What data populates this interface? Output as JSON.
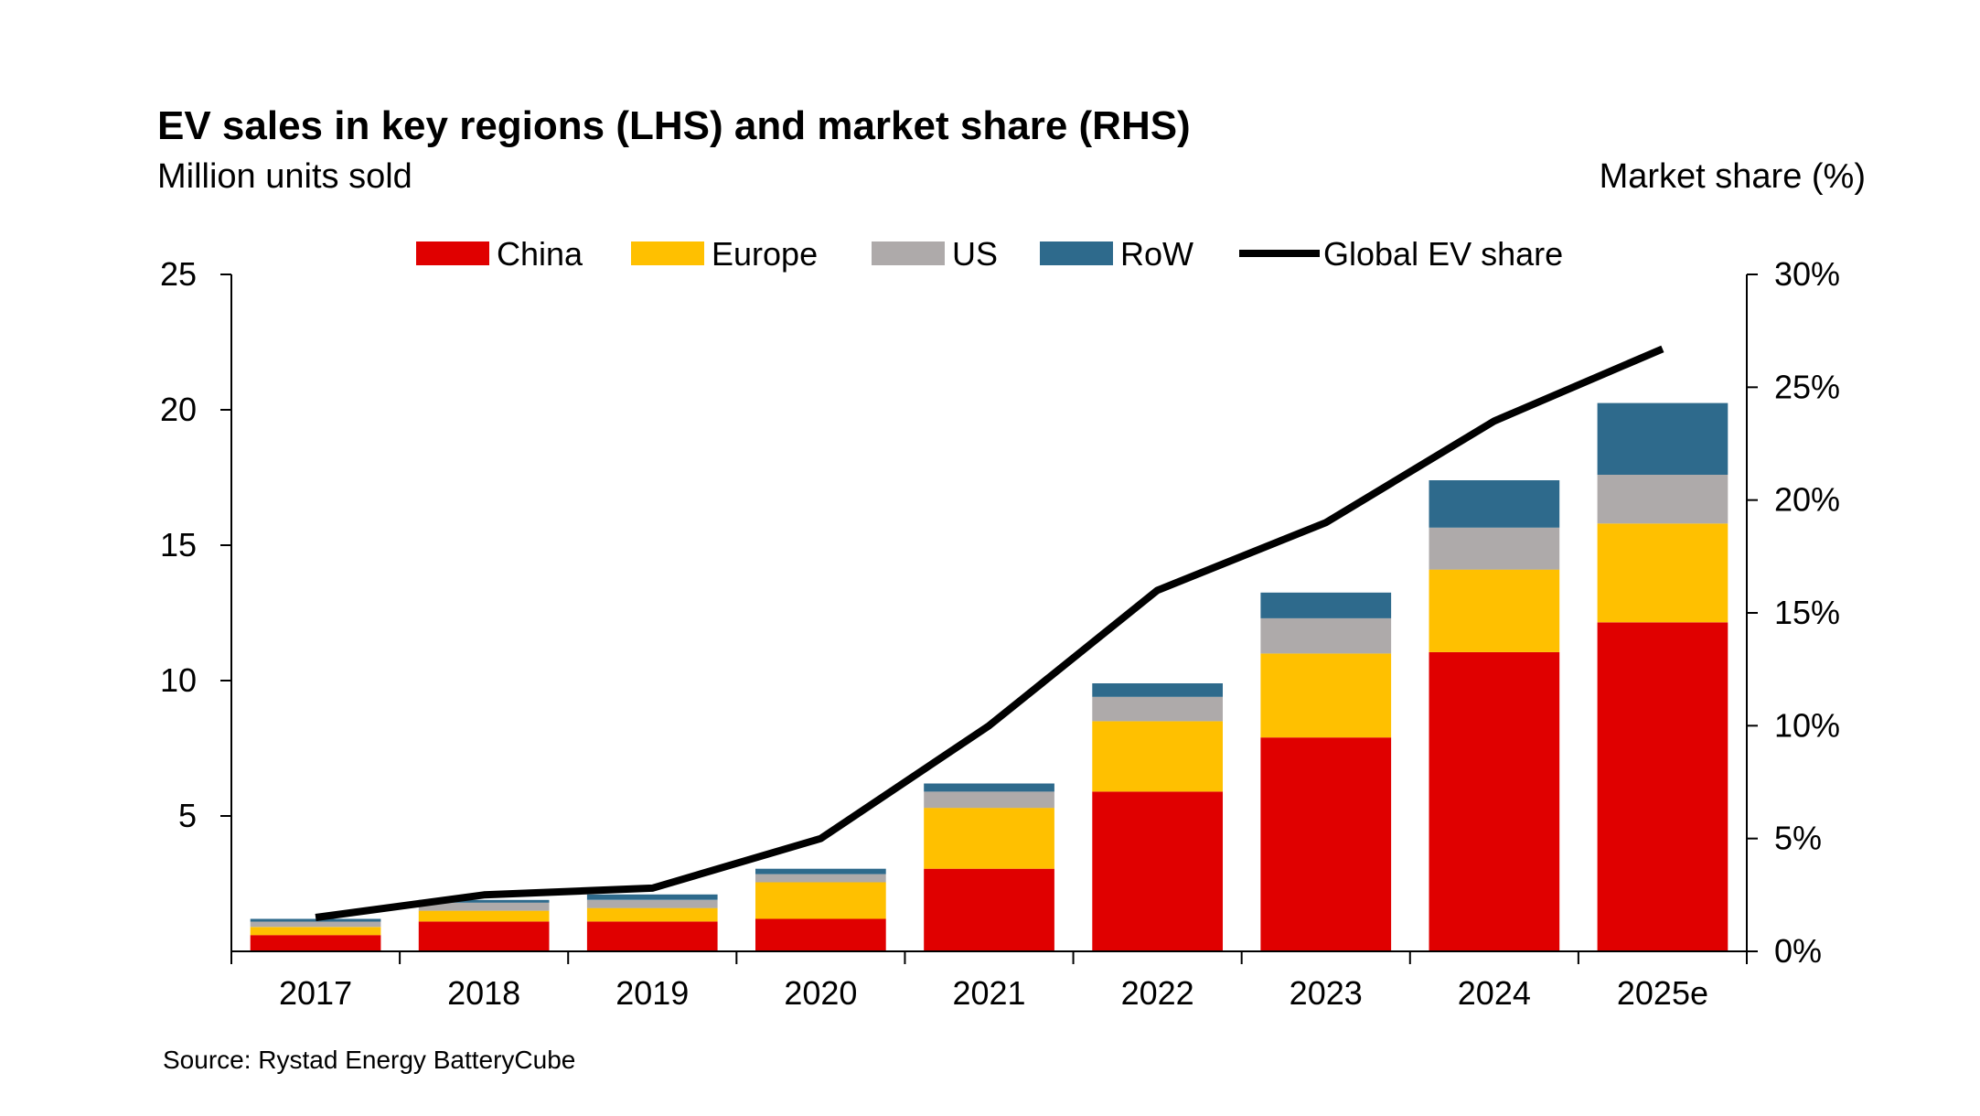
{
  "chart_data": {
    "type": "bar",
    "stacked": true,
    "title": "EV sales in key regions (LHS) and market share (RHS)",
    "ylabel": "Million units sold",
    "y2label": "Market share (%)",
    "source": "Source: Rystad Energy BatteryCube",
    "categories": [
      "2017",
      "2018",
      "2019",
      "2020",
      "2021",
      "2022",
      "2023",
      "2024",
      "2025e"
    ],
    "ylim": [
      0,
      25
    ],
    "yticks": [
      "5",
      "10",
      "15",
      "20",
      "25"
    ],
    "y2lim": [
      0,
      30
    ],
    "y2ticks": [
      "0%",
      "5%",
      "10%",
      "15%",
      "20%",
      "25%",
      "30%"
    ],
    "legend_position": "top",
    "grid": false,
    "series": [
      {
        "name": "China",
        "color": "#e00000",
        "values": [
          0.6,
          1.1,
          1.1,
          1.2,
          3.05,
          5.9,
          7.9,
          11.05,
          12.15
        ]
      },
      {
        "name": "Europe",
        "color": "#ffc000",
        "values": [
          0.3,
          0.4,
          0.5,
          1.35,
          2.25,
          2.6,
          3.1,
          3.05,
          3.65
        ]
      },
      {
        "name": "US",
        "color": "#aeaaaa",
        "values": [
          0.2,
          0.3,
          0.3,
          0.3,
          0.6,
          0.9,
          1.3,
          1.55,
          1.8
        ]
      },
      {
        "name": "RoW",
        "color": "#2e6a8c",
        "values": [
          0.1,
          0.1,
          0.2,
          0.2,
          0.3,
          0.5,
          0.95,
          1.75,
          2.65
        ]
      }
    ],
    "line_series": {
      "name": "Global EV share",
      "color": "#000000",
      "axis": "right",
      "values": [
        1.5,
        2.5,
        2.8,
        5.0,
        10.0,
        16.0,
        19.0,
        23.5,
        26.7
      ]
    }
  }
}
